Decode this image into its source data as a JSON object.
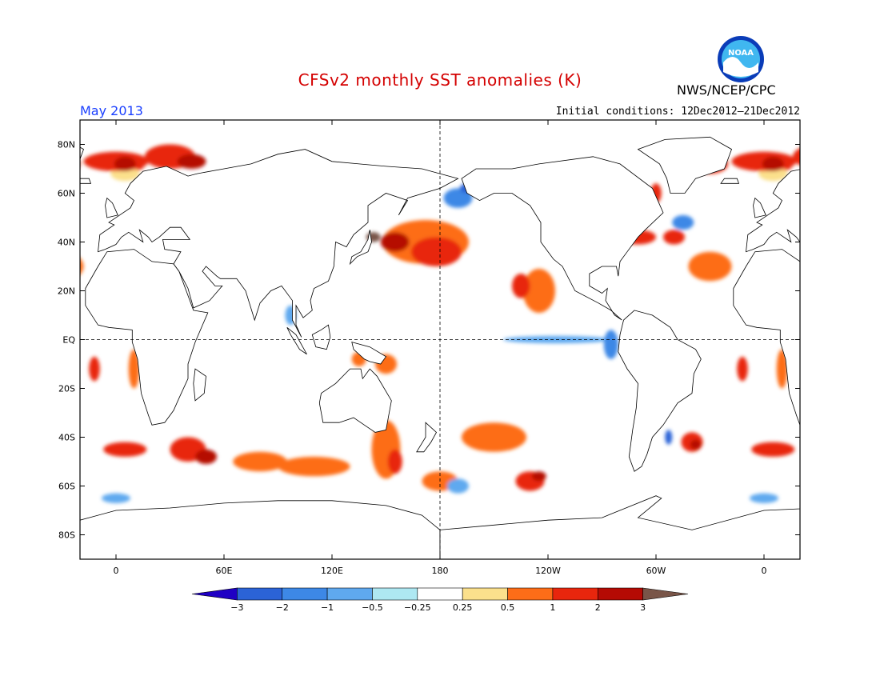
{
  "header": {
    "title": "CFSv2 monthly SST anomalies (K)",
    "month": "May 2013",
    "initial_conditions": "Initial conditions: 12Dec2012–21Dec2012",
    "agency": "NWS/NCEP/CPC",
    "logo_text": "NOAA"
  },
  "map": {
    "lat_ticks": [
      "80N",
      "60N",
      "40N",
      "20N",
      "EQ",
      "20S",
      "40S",
      "60S",
      "80S"
    ],
    "lon_ticks": [
      "0",
      "60E",
      "120E",
      "180",
      "120W",
      "60W",
      "0"
    ],
    "lat_values": [
      80,
      60,
      40,
      20,
      0,
      -20,
      -40,
      -60,
      -80
    ],
    "lon_values": [
      0,
      60,
      120,
      180,
      240,
      300,
      360
    ],
    "lon_range": [
      -20,
      380
    ],
    "lat_range": [
      -90,
      90
    ]
  },
  "colorbar": {
    "labels": [
      "−3",
      "−2",
      "−1",
      "−0.5",
      "−0.25",
      "0.25",
      "0.5",
      "1",
      "2",
      "3"
    ],
    "colors": [
      "#1f00c4",
      "#2b63d7",
      "#3d88e6",
      "#5fa9ef",
      "#aee8f2",
      "#ffffff",
      "#fbe08c",
      "#fd6d18",
      "#e8260d",
      "#b50a04",
      "#795548"
    ]
  },
  "anomalies": [
    {
      "lon": 30,
      "lat": 75,
      "rx": 14,
      "ry": 5,
      "level": 8
    },
    {
      "lon": 42,
      "lat": 73,
      "rx": 8,
      "ry": 3,
      "level": 9
    },
    {
      "lon": 10,
      "lat": 72,
      "rx": 6,
      "ry": 3,
      "level": 8
    },
    {
      "lon": 5,
      "lat": 68,
      "rx": 8,
      "ry": 3,
      "level": 6
    },
    {
      "lon": 330,
      "lat": 72,
      "rx": 10,
      "ry": 4,
      "level": 8
    },
    {
      "lon": 360,
      "lat": 73,
      "rx": 18,
      "ry": 4,
      "level": 8
    },
    {
      "lon": 365,
      "lat": 72,
      "rx": 6,
      "ry": 3,
      "level": 9
    },
    {
      "lon": 300,
      "lat": 60,
      "rx": 3,
      "ry": 4,
      "level": 8
    },
    {
      "lon": 172,
      "lat": 40,
      "rx": 24,
      "ry": 9,
      "level": 7
    },
    {
      "lon": 178,
      "lat": 36,
      "rx": 14,
      "ry": 6,
      "level": 8
    },
    {
      "lon": 155,
      "lat": 40,
      "rx": 8,
      "ry": 4,
      "level": 9
    },
    {
      "lon": 143,
      "lat": 42,
      "rx": 4,
      "ry": 2,
      "level": 10
    },
    {
      "lon": 235,
      "lat": 20,
      "rx": 9,
      "ry": 9,
      "level": 7
    },
    {
      "lon": 225,
      "lat": 22,
      "rx": 5,
      "ry": 5,
      "level": 8
    },
    {
      "lon": 330,
      "lat": 30,
      "rx": 12,
      "ry": 6,
      "level": 7
    },
    {
      "lon": 290,
      "lat": 42,
      "rx": 10,
      "ry": 3,
      "level": 8
    },
    {
      "lon": 310,
      "lat": 42,
      "rx": 6,
      "ry": 3,
      "level": 8
    },
    {
      "lon": 40,
      "lat": -45,
      "rx": 10,
      "ry": 5,
      "level": 8
    },
    {
      "lon": 50,
      "lat": -48,
      "rx": 6,
      "ry": 3,
      "level": 9
    },
    {
      "lon": 5,
      "lat": -45,
      "rx": 12,
      "ry": 3,
      "level": 8
    },
    {
      "lon": 80,
      "lat": -50,
      "rx": 15,
      "ry": 4,
      "level": 7
    },
    {
      "lon": 110,
      "lat": -52,
      "rx": 20,
      "ry": 4,
      "level": 7
    },
    {
      "lon": 150,
      "lat": -45,
      "rx": 8,
      "ry": 12,
      "level": 7
    },
    {
      "lon": 155,
      "lat": -50,
      "rx": 4,
      "ry": 5,
      "level": 8
    },
    {
      "lon": 180,
      "lat": -58,
      "rx": 10,
      "ry": 4,
      "level": 7
    },
    {
      "lon": 210,
      "lat": -40,
      "rx": 18,
      "ry": 6,
      "level": 7
    },
    {
      "lon": 230,
      "lat": -58,
      "rx": 8,
      "ry": 4,
      "level": 8
    },
    {
      "lon": 235,
      "lat": -56,
      "rx": 4,
      "ry": 2,
      "level": 9
    },
    {
      "lon": 320,
      "lat": -42,
      "rx": 6,
      "ry": 4,
      "level": 8
    },
    {
      "lon": 322,
      "lat": -43,
      "rx": 3,
      "ry": 2,
      "level": 9
    },
    {
      "lon": 150,
      "lat": -10,
      "rx": 6,
      "ry": 4,
      "level": 7
    },
    {
      "lon": 135,
      "lat": -8,
      "rx": 4,
      "ry": 3,
      "level": 7
    },
    {
      "lon": 10,
      "lat": -12,
      "rx": 3,
      "ry": 8,
      "level": 7
    },
    {
      "lon": 348,
      "lat": -12,
      "rx": 3,
      "ry": 5,
      "level": 8
    },
    {
      "lon": 190,
      "lat": 58,
      "rx": 8,
      "ry": 4,
      "level": 2
    },
    {
      "lon": 195,
      "lat": 62,
      "rx": 4,
      "ry": 2,
      "level": 1
    },
    {
      "lon": 315,
      "lat": 48,
      "rx": 6,
      "ry": 3,
      "level": 2
    },
    {
      "lon": 245,
      "lat": 0,
      "rx": 30,
      "ry": 1.5,
      "level": 3
    },
    {
      "lon": 275,
      "lat": -2,
      "rx": 4,
      "ry": 6,
      "level": 2
    },
    {
      "lon": 97,
      "lat": 10,
      "rx": 3,
      "ry": 4,
      "level": 3
    },
    {
      "lon": 307,
      "lat": -40,
      "rx": 2,
      "ry": 3,
      "level": 1
    },
    {
      "lon": 190,
      "lat": -60,
      "rx": 6,
      "ry": 3,
      "level": 3
    },
    {
      "lon": 360,
      "lat": -65,
      "rx": 8,
      "ry": 2,
      "level": 3
    }
  ]
}
